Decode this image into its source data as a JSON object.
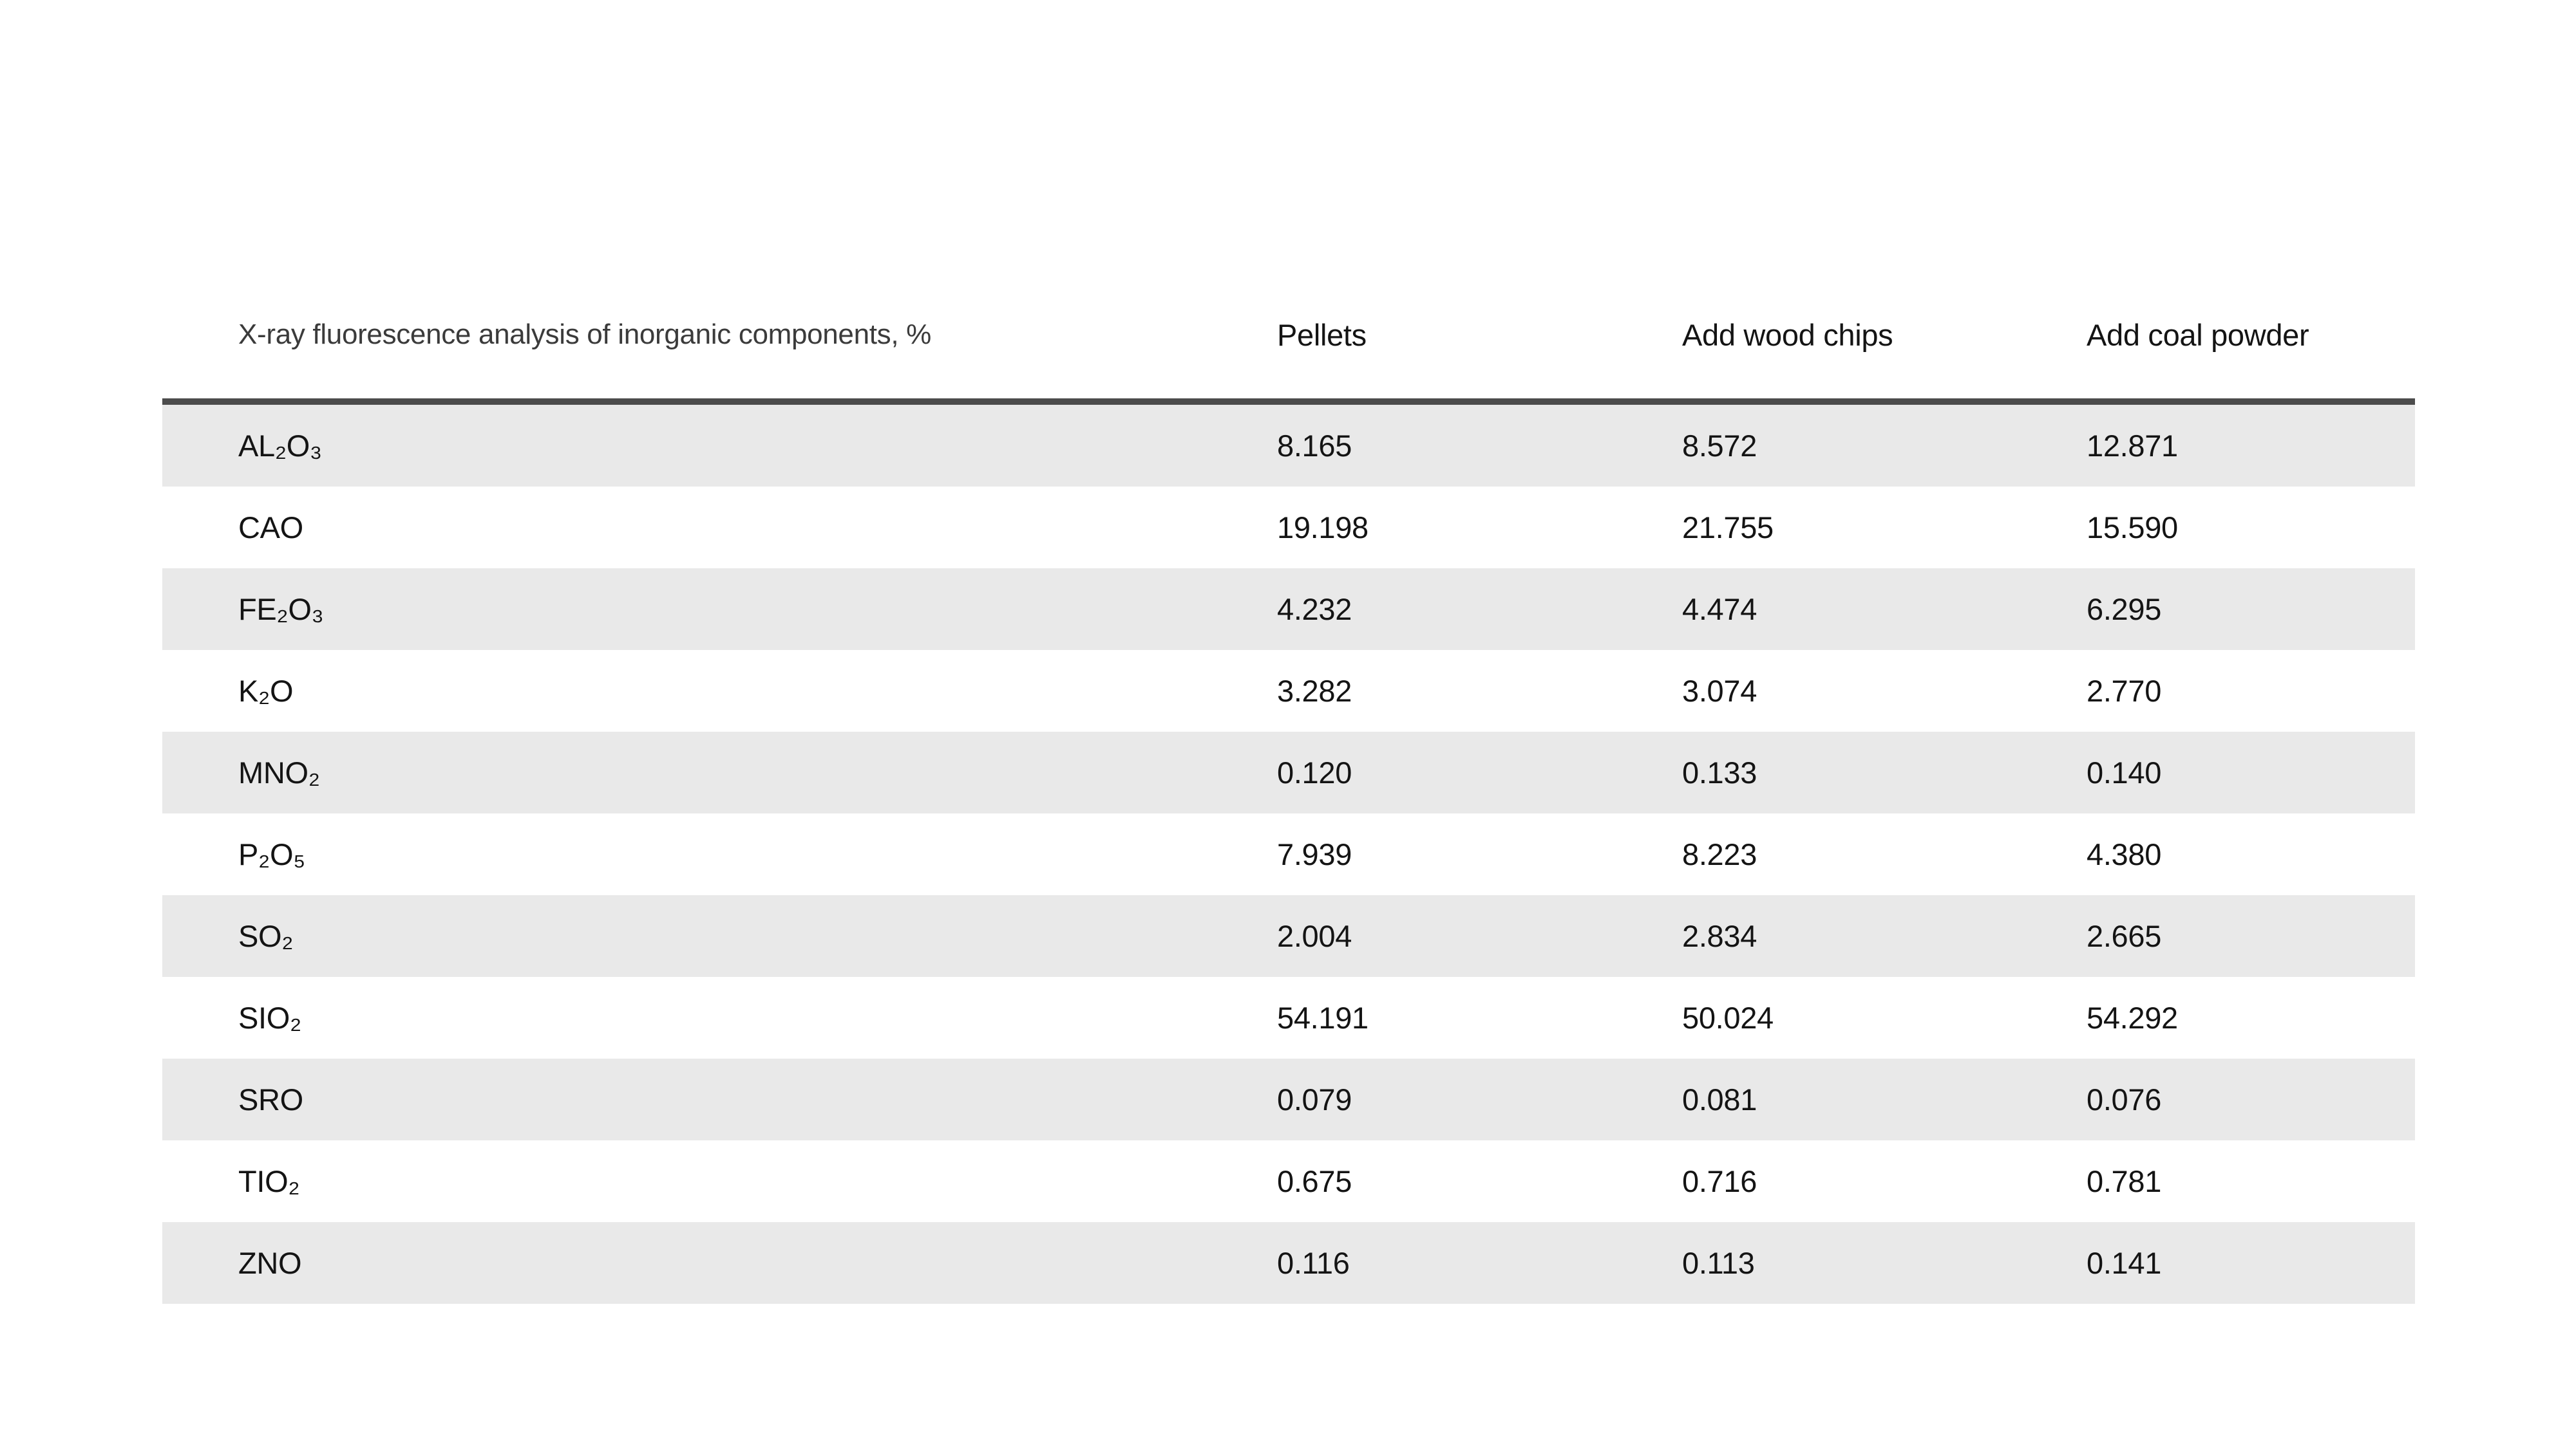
{
  "chart_data": {
    "type": "table",
    "title": "X-ray fluorescence analysis of inorganic components, %",
    "column_headers": [
      "Pellets",
      "Add wood chips",
      "Add coal powder"
    ],
    "rows": [
      {
        "component": "AL₂O₃",
        "values": [
          "8.165",
          "8.572",
          "12.871"
        ]
      },
      {
        "component": "CAO",
        "values": [
          "19.198",
          "21.755",
          "15.590"
        ]
      },
      {
        "component": "FE₂O₃",
        "values": [
          "4.232",
          "4.474",
          "6.295"
        ]
      },
      {
        "component": "K₂O",
        "values": [
          "3.282",
          "3.074",
          "2.770"
        ]
      },
      {
        "component": "MNO₂",
        "values": [
          "0.120",
          "0.133",
          "0.140"
        ]
      },
      {
        "component": "P₂O₅",
        "values": [
          "7.939",
          "8.223",
          "4.380"
        ]
      },
      {
        "component": "SO₂",
        "values": [
          "2.004",
          "2.834",
          "2.665"
        ]
      },
      {
        "component": "SIO₂",
        "values": [
          "54.191",
          "50.024",
          "54.292"
        ]
      },
      {
        "component": "SRO",
        "values": [
          "0.079",
          "0.081",
          "0.076"
        ]
      },
      {
        "component": "TIO₂",
        "values": [
          "0.675",
          "0.716",
          "0.781"
        ]
      },
      {
        "component": "ZNO",
        "values": [
          "0.116",
          "0.113",
          "0.141"
        ]
      }
    ],
    "layout": {
      "row_stripes": true,
      "first_row_striped": true,
      "header_separator": true,
      "legend": "none",
      "column_alignment": "left"
    }
  },
  "colors": {
    "background": "#ffffff",
    "stripe": "#e9e9e9",
    "separator": "#4c4c4c",
    "title_text": "#3b3b3b",
    "body_text": "#141414"
  }
}
